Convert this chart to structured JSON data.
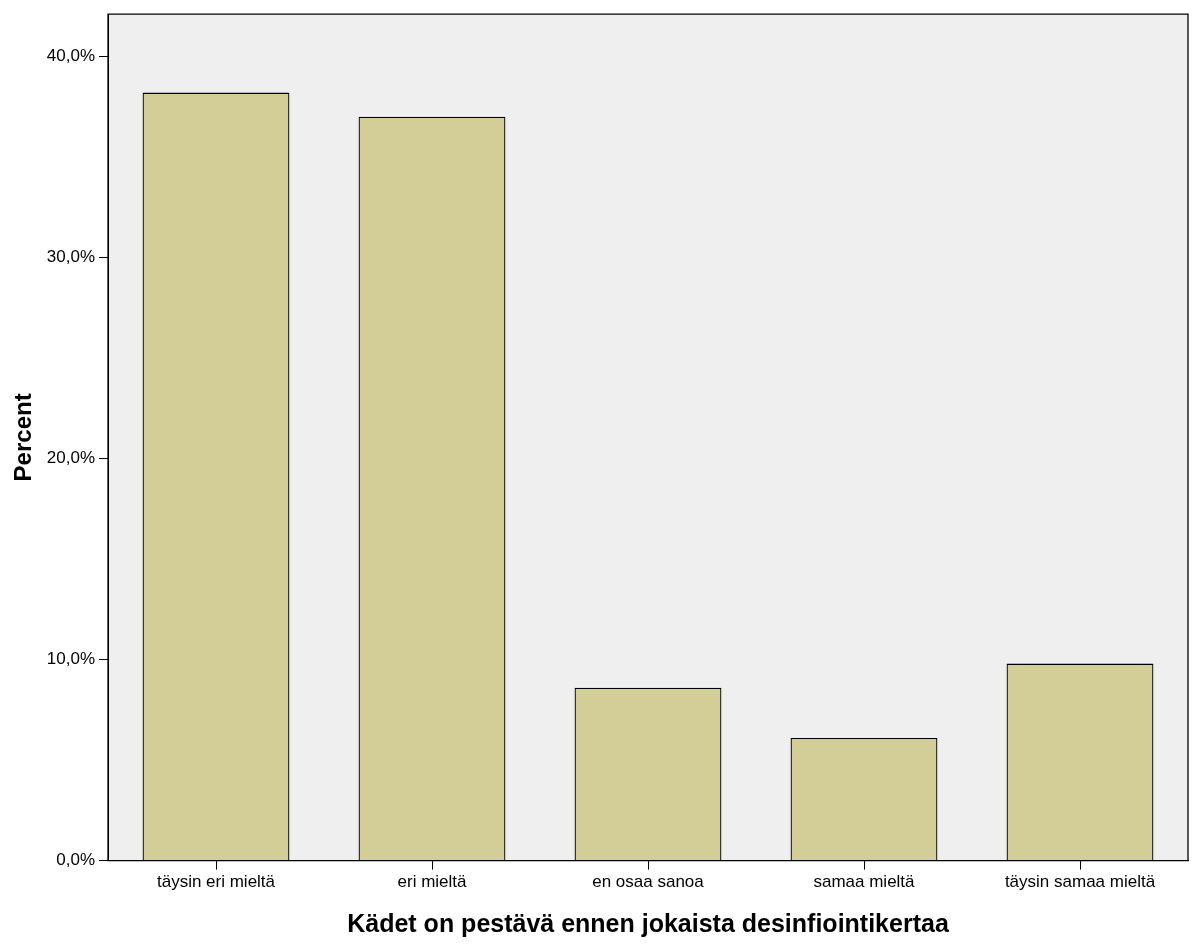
{
  "chart_data": {
    "type": "bar",
    "xlabel": "Kädet on pestävä ennen jokaista desinfiointikertaa",
    "ylabel": "Percent",
    "categories": [
      "täysin eri mieltä",
      "eri mieltä",
      "en osaa sanoa",
      "samaa mieltä",
      "täysin samaa mieltä"
    ],
    "values": [
      38.2,
      37.0,
      8.6,
      6.1,
      9.8
    ],
    "color": "#d3ce97",
    "ylim": [
      0,
      42.1
    ],
    "yticks": [
      {
        "value": 0,
        "label": "0,0%"
      },
      {
        "value": 10,
        "label": "10,0%"
      },
      {
        "value": 20,
        "label": "20,0%"
      },
      {
        "value": 30,
        "label": "30,0%"
      },
      {
        "value": 40,
        "label": "40,0%"
      }
    ]
  }
}
